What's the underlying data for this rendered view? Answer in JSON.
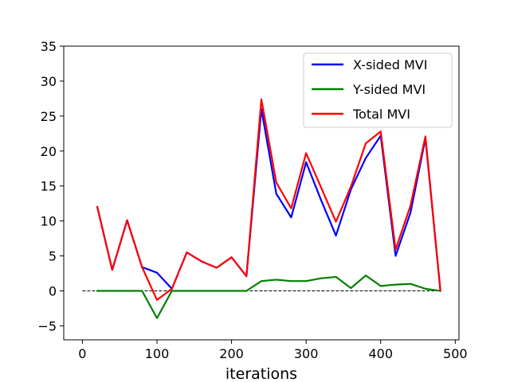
{
  "chart_data": {
    "type": "line",
    "title": "",
    "xlabel": "iterations",
    "ylabel": "",
    "xlim": [
      -25,
      505
    ],
    "ylim": [
      -7,
      35
    ],
    "xticks": [
      0,
      100,
      200,
      300,
      400,
      500
    ],
    "yticks": [
      -5,
      0,
      5,
      10,
      15,
      20,
      25,
      30,
      35
    ],
    "legend_position": "top-right",
    "x": [
      20,
      40,
      60,
      80,
      100,
      120,
      140,
      160,
      180,
      200,
      220,
      240,
      260,
      280,
      300,
      320,
      340,
      360,
      380,
      400,
      420,
      440,
      460,
      480
    ],
    "series": [
      {
        "name": "X-sided MVI",
        "color": "#0000ff",
        "values": [
          12.0,
          3.0,
          10.1,
          3.4,
          2.6,
          0.3,
          5.5,
          4.2,
          3.3,
          4.8,
          2.1,
          26.0,
          13.9,
          10.5,
          18.4,
          13.0,
          7.9,
          14.5,
          19.0,
          22.2,
          5.0,
          11.2,
          21.8,
          0.1
        ]
      },
      {
        "name": "Y-sided MVI",
        "color": "#008000",
        "values": [
          0.0,
          0.0,
          0.0,
          0.0,
          -3.9,
          0.0,
          0.0,
          0.0,
          0.0,
          0.0,
          0.0,
          1.4,
          1.6,
          1.4,
          1.4,
          1.8,
          2.0,
          0.4,
          2.2,
          0.7,
          0.9,
          1.0,
          0.3,
          0.0
        ]
      },
      {
        "name": "Total MVI",
        "color": "#ff0000",
        "values": [
          12.0,
          3.0,
          10.1,
          3.4,
          -1.3,
          0.3,
          5.5,
          4.2,
          3.3,
          4.8,
          2.1,
          27.4,
          15.5,
          11.8,
          19.7,
          14.8,
          9.9,
          14.9,
          21.1,
          22.8,
          5.9,
          12.2,
          22.1,
          0.1
        ]
      }
    ],
    "reference_line": {
      "y": 0,
      "x_range": [
        0,
        480
      ],
      "style": "dashed",
      "color": "#000000"
    }
  }
}
